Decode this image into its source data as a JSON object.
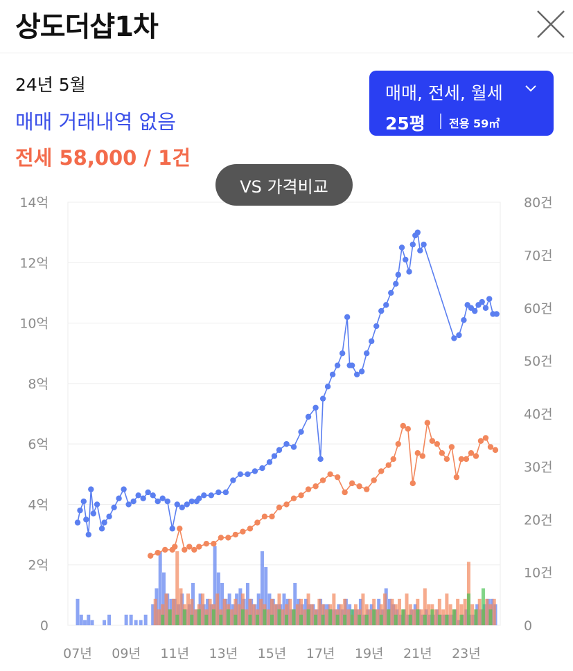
{
  "header": {
    "title": "상도더샵1차"
  },
  "summary": {
    "date": "24년 5월",
    "sale_text": "매매 거래내역 없음",
    "jeonse_text": "전세 58,000 / 1건"
  },
  "selector": {
    "type_label": "매매, 전세, 월세",
    "size_label": "25평",
    "area_label": "전용 59㎡"
  },
  "compare_button": {
    "label": "VS 가격비교"
  },
  "colors": {
    "sale": "#5b7ff0",
    "jeonse": "#f2875c",
    "monthly": "#4cc255",
    "accent": "#2a3ff2"
  },
  "chart_data": {
    "type": "line",
    "x_unit": "year",
    "xlim": [
      2006.6,
      2024.4
    ],
    "x_ticks": [
      2007,
      2009,
      2011,
      2013,
      2015,
      2017,
      2019,
      2021,
      2023
    ],
    "x_tick_labels": [
      "07년",
      "09년",
      "11년",
      "13년",
      "15년",
      "17년",
      "19년",
      "21년",
      "23년"
    ],
    "y_left": {
      "lim": [
        0,
        14
      ],
      "ticks": [
        0,
        2,
        4,
        6,
        8,
        10,
        12,
        14
      ],
      "tick_labels": [
        "0",
        "2억",
        "4억",
        "6억",
        "8억",
        "10억",
        "12억",
        "14억"
      ]
    },
    "y_right": {
      "lim": [
        0,
        80
      ],
      "ticks": [
        0,
        10,
        20,
        30,
        40,
        50,
        60,
        70,
        80
      ],
      "tick_labels": [
        "0",
        "10건",
        "20건",
        "30건",
        "40건",
        "50건",
        "60건",
        "70건",
        "80건"
      ]
    },
    "grid": true,
    "series": [
      {
        "name": "매매",
        "axis": "left",
        "x": [
          2007.0,
          2007.1,
          2007.25,
          2007.35,
          2007.45,
          2007.55,
          2007.65,
          2007.8,
          2008.0,
          2008.1,
          2008.3,
          2008.5,
          2008.7,
          2008.9,
          2009.1,
          2009.3,
          2009.5,
          2009.7,
          2009.9,
          2010.1,
          2010.3,
          2010.5,
          2010.7,
          2010.9,
          2011.1,
          2011.3,
          2011.5,
          2011.7,
          2011.9,
          2012.0,
          2012.2,
          2012.5,
          2012.8,
          2013.1,
          2013.4,
          2013.7,
          2014.0,
          2014.3,
          2014.6,
          2014.9,
          2015.1,
          2015.3,
          2015.6,
          2015.9,
          2016.2,
          2016.5,
          2016.8,
          2017.0,
          2017.1,
          2017.3,
          2017.5,
          2017.7,
          2017.9,
          2018.1,
          2018.2,
          2018.3,
          2018.5,
          2018.7,
          2018.9,
          2019.1,
          2019.3,
          2019.5,
          2019.7,
          2019.9,
          2020.1,
          2020.2,
          2020.35,
          2020.5,
          2020.65,
          2020.8,
          2020.9,
          2021.0,
          2021.1,
          2021.25,
          2022.5,
          2022.7,
          2022.9,
          2023.05,
          2023.2,
          2023.35,
          2023.5,
          2023.65,
          2023.8,
          2023.95,
          2024.1,
          2024.25
        ],
        "values": [
          3.4,
          3.8,
          4.1,
          3.5,
          3.0,
          4.5,
          3.7,
          4.0,
          3.2,
          3.4,
          3.6,
          3.9,
          4.2,
          4.5,
          4.0,
          4.1,
          4.3,
          4.2,
          4.4,
          4.3,
          4.1,
          4.2,
          4.1,
          3.2,
          4.0,
          3.9,
          4.0,
          4.1,
          4.1,
          4.2,
          4.3,
          4.3,
          4.4,
          4.4,
          4.8,
          5.0,
          5.0,
          5.1,
          5.2,
          5.4,
          5.6,
          5.8,
          6.0,
          5.9,
          6.4,
          6.9,
          7.2,
          5.5,
          7.5,
          7.9,
          8.3,
          8.6,
          9.0,
          10.2,
          8.6,
          8.6,
          8.3,
          8.4,
          9.0,
          9.4,
          9.9,
          10.4,
          10.6,
          11.0,
          11.3,
          11.6,
          12.5,
          12.1,
          11.7,
          12.6,
          12.9,
          13.0,
          12.4,
          12.6,
          9.5,
          9.6,
          10.1,
          10.6,
          10.5,
          10.4,
          10.6,
          10.7,
          10.5,
          10.8,
          10.3,
          10.3
        ]
      },
      {
        "name": "전세",
        "axis": "left",
        "x": [
          2010.0,
          2010.3,
          2010.6,
          2010.9,
          2011.0,
          2011.2,
          2011.4,
          2011.6,
          2011.8,
          2012.0,
          2012.3,
          2012.6,
          2012.9,
          2013.2,
          2013.5,
          2013.8,
          2014.1,
          2014.4,
          2014.7,
          2015.0,
          2015.3,
          2015.6,
          2015.9,
          2016.2,
          2016.5,
          2016.8,
          2017.1,
          2017.4,
          2017.7,
          2018.0,
          2018.3,
          2018.6,
          2018.9,
          2019.2,
          2019.5,
          2019.8,
          2020.0,
          2020.2,
          2020.4,
          2020.6,
          2020.8,
          2021.0,
          2021.2,
          2021.4,
          2021.6,
          2021.8,
          2022.0,
          2022.2,
          2022.4,
          2022.6,
          2022.8,
          2023.0,
          2023.2,
          2023.4,
          2023.6,
          2023.8,
          2024.0,
          2024.2
        ],
        "values": [
          2.3,
          2.4,
          2.5,
          2.5,
          2.6,
          3.2,
          2.5,
          2.6,
          2.5,
          2.6,
          2.7,
          2.7,
          2.9,
          2.9,
          3.0,
          3.1,
          3.2,
          3.4,
          3.6,
          3.6,
          3.9,
          4.0,
          4.2,
          4.3,
          4.5,
          4.6,
          4.8,
          5.0,
          4.9,
          4.4,
          4.7,
          4.6,
          4.5,
          4.8,
          5.1,
          5.3,
          5.5,
          6.0,
          6.6,
          6.5,
          4.7,
          5.7,
          5.6,
          6.7,
          6.1,
          6.0,
          5.7,
          5.5,
          5.9,
          4.9,
          5.5,
          5.5,
          5.7,
          5.6,
          6.1,
          6.2,
          5.9,
          5.8
        ]
      },
      {
        "name": "매매 거래량",
        "axis": "right",
        "x": [
          2007.0,
          2007.15,
          2007.3,
          2007.45,
          2007.6,
          2008.1,
          2008.3,
          2009.0,
          2009.2,
          2009.4,
          2009.6,
          2009.8,
          2010.1,
          2010.25,
          2010.4,
          2010.55,
          2010.7,
          2010.85,
          2011.0,
          2011.15,
          2011.3,
          2011.45,
          2011.6,
          2011.75,
          2011.9,
          2012.05,
          2012.2,
          2012.35,
          2012.5,
          2012.65,
          2012.8,
          2012.95,
          2013.1,
          2013.25,
          2013.4,
          2013.55,
          2013.7,
          2013.85,
          2014.0,
          2014.15,
          2014.3,
          2014.45,
          2014.6,
          2014.75,
          2014.9,
          2015.05,
          2015.2,
          2015.35,
          2015.5,
          2015.65,
          2015.8,
          2015.95,
          2016.1,
          2016.25,
          2016.4,
          2016.55,
          2016.7,
          2016.85,
          2017.0,
          2017.15,
          2017.3,
          2017.45,
          2017.6,
          2017.75,
          2017.9,
          2018.05,
          2018.2,
          2018.35,
          2018.5,
          2018.65,
          2018.8,
          2018.95,
          2019.1,
          2019.25,
          2019.4,
          2019.55,
          2019.7,
          2019.85,
          2020.0,
          2020.15,
          2020.3,
          2020.45,
          2020.6,
          2020.75,
          2020.9,
          2021.05,
          2021.2,
          2021.35,
          2021.5,
          2021.65,
          2021.8,
          2021.95,
          2022.1,
          2022.25,
          2022.4,
          2022.55,
          2022.7,
          2022.85,
          2023.0,
          2023.15,
          2023.3,
          2023.45,
          2023.6,
          2023.75,
          2023.9,
          2024.05,
          2024.2
        ],
        "values": [
          5,
          2,
          1,
          2,
          1,
          1,
          2,
          2,
          2,
          1,
          1,
          2,
          4,
          7,
          14,
          10,
          6,
          5,
          5,
          4,
          6,
          3,
          4,
          8,
          3,
          6,
          4,
          5,
          4,
          15,
          10,
          8,
          5,
          6,
          4,
          6,
          7,
          5,
          8,
          5,
          4,
          6,
          14,
          11,
          6,
          5,
          4,
          4,
          6,
          5,
          3,
          8,
          5,
          4,
          5,
          4,
          4,
          3,
          5,
          4,
          4,
          3,
          3,
          4,
          3,
          5,
          4,
          3,
          3,
          5,
          2,
          3,
          4,
          3,
          5,
          3,
          7,
          5,
          4,
          3,
          2,
          3,
          2,
          3,
          4,
          3,
          2,
          3,
          2,
          2,
          3,
          2,
          2,
          2,
          2,
          3,
          1,
          2,
          3,
          2,
          2,
          4,
          3,
          4,
          5,
          5,
          4
        ]
      },
      {
        "name": "전세 거래량",
        "axis": "right",
        "x": [
          2010.2,
          2010.35,
          2010.5,
          2010.65,
          2010.8,
          2010.95,
          2011.1,
          2011.25,
          2011.4,
          2011.55,
          2011.7,
          2011.85,
          2012.0,
          2012.15,
          2012.3,
          2012.45,
          2012.6,
          2012.75,
          2012.9,
          2013.05,
          2013.2,
          2013.35,
          2013.5,
          2013.65,
          2013.8,
          2013.95,
          2014.1,
          2014.25,
          2014.4,
          2014.55,
          2014.7,
          2014.85,
          2015.0,
          2015.15,
          2015.3,
          2015.45,
          2015.6,
          2015.75,
          2015.9,
          2016.05,
          2016.2,
          2016.35,
          2016.5,
          2016.65,
          2016.8,
          2016.95,
          2017.1,
          2017.25,
          2017.4,
          2017.55,
          2017.7,
          2017.85,
          2018.0,
          2018.15,
          2018.3,
          2018.45,
          2018.6,
          2018.75,
          2018.9,
          2019.05,
          2019.2,
          2019.35,
          2019.5,
          2019.65,
          2019.8,
          2019.95,
          2020.1,
          2020.25,
          2020.4,
          2020.55,
          2020.7,
          2020.85,
          2021.0,
          2021.15,
          2021.3,
          2021.45,
          2021.6,
          2021.75,
          2021.9,
          2022.05,
          2022.2,
          2022.35,
          2022.5,
          2022.65,
          2022.8,
          2022.95,
          2023.1,
          2023.25,
          2023.4,
          2023.55,
          2023.7,
          2023.85,
          2024.0,
          2024.15
        ],
        "values": [
          5,
          3,
          4,
          6,
          3,
          5,
          14,
          7,
          4,
          6,
          5,
          3,
          4,
          6,
          3,
          5,
          4,
          6,
          3,
          5,
          4,
          3,
          5,
          4,
          6,
          3,
          5,
          4,
          3,
          5,
          4,
          3,
          5,
          4,
          6,
          3,
          4,
          5,
          3,
          4,
          5,
          3,
          6,
          4,
          3,
          5,
          4,
          3,
          4,
          6,
          3,
          4,
          5,
          3,
          2,
          4,
          3,
          6,
          4,
          3,
          5,
          3,
          4,
          6,
          3,
          5,
          4,
          5,
          3,
          6,
          4,
          3,
          5,
          3,
          7,
          4,
          4,
          3,
          5,
          3,
          6,
          4,
          3,
          5,
          4,
          5,
          12,
          4,
          3,
          5,
          3,
          5,
          4,
          5
        ]
      },
      {
        "name": "월세 거래량",
        "axis": "right",
        "x": [
          2010.5,
          2010.8,
          2011.1,
          2011.4,
          2011.7,
          2012.0,
          2012.3,
          2012.6,
          2012.9,
          2013.2,
          2013.5,
          2013.8,
          2014.1,
          2014.4,
          2014.7,
          2015.0,
          2015.3,
          2015.6,
          2015.9,
          2016.2,
          2016.5,
          2016.8,
          2017.1,
          2017.4,
          2017.7,
          2018.0,
          2018.3,
          2018.6,
          2018.9,
          2019.2,
          2019.5,
          2019.8,
          2020.1,
          2020.4,
          2020.7,
          2021.0,
          2021.3,
          2021.6,
          2021.9,
          2022.2,
          2022.5,
          2022.8,
          2023.1,
          2023.4,
          2023.7,
          2024.0
        ],
        "values": [
          2,
          3,
          2,
          3,
          2,
          3,
          2,
          3,
          2,
          3,
          2,
          3,
          2,
          2,
          3,
          2,
          3,
          2,
          3,
          2,
          3,
          2,
          2,
          3,
          2,
          2,
          3,
          2,
          2,
          3,
          2,
          3,
          2,
          3,
          2,
          3,
          2,
          3,
          2,
          2,
          3,
          2,
          6,
          3,
          7,
          3
        ]
      }
    ]
  }
}
